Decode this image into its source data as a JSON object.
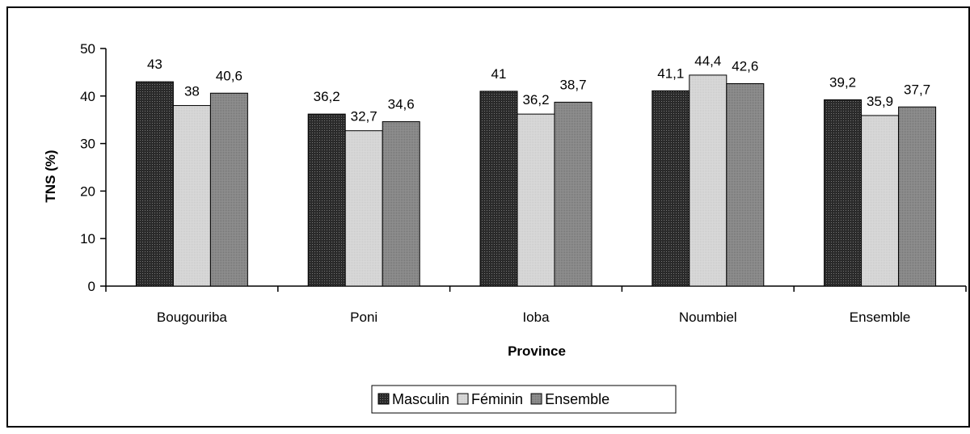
{
  "chart_data": {
    "type": "bar",
    "title": "",
    "xlabel": "Province",
    "ylabel": "TNS (%)",
    "ylim": [
      0,
      50
    ],
    "yticks": [
      0,
      10,
      20,
      30,
      40,
      50
    ],
    "grid": false,
    "legend_position": "bottom",
    "categories": [
      "Bougouriba",
      "Poni",
      "Ioba",
      "Noumbiel",
      "Ensemble"
    ],
    "series": [
      {
        "name": "Masculin",
        "values": [
          43,
          36.2,
          41,
          41.1,
          39.2
        ],
        "value_labels": [
          "43",
          "36,2",
          "41",
          "41,1",
          "39,2"
        ],
        "color": "#3c3c3c"
      },
      {
        "name": "Féminin",
        "values": [
          38,
          32.7,
          36.2,
          44.4,
          35.9
        ],
        "value_labels": [
          "38",
          "32,7",
          "36,2",
          "44,4",
          "35,9"
        ],
        "color": "#d6d6d6"
      },
      {
        "name": "Ensemble",
        "values": [
          40.6,
          34.6,
          38.7,
          42.6,
          37.7
        ],
        "value_labels": [
          "40,6",
          "34,6",
          "38,7",
          "42,6",
          "37,7"
        ],
        "color": "#8a8a8a"
      }
    ]
  }
}
